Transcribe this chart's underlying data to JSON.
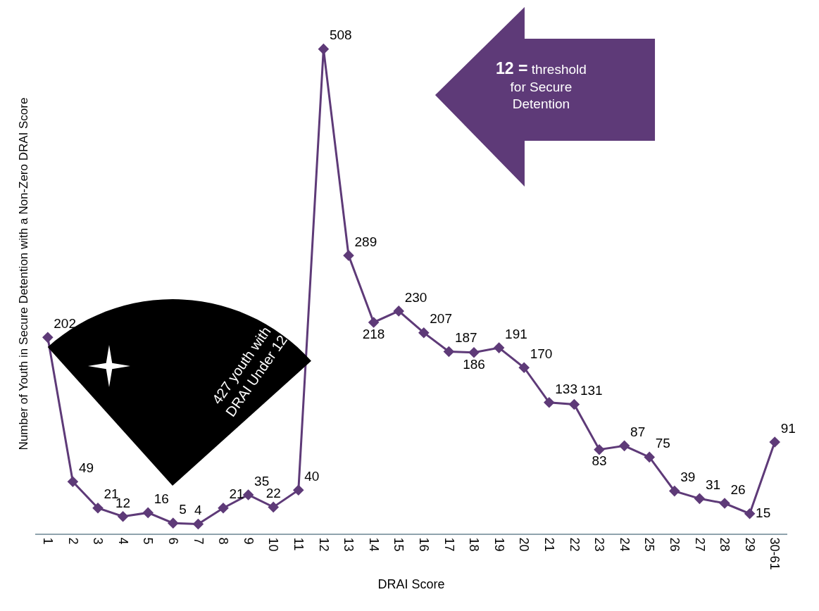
{
  "chart_data": {
    "type": "line",
    "xlabel": "DRAI Score",
    "ylabel": "Number of Youth in Secure Detention with a Non-Zero DRAI Score",
    "categories": [
      "1",
      "2",
      "3",
      "4",
      "5",
      "6",
      "7",
      "8",
      "9",
      "10",
      "11",
      "12",
      "13",
      "14",
      "15",
      "16",
      "17",
      "18",
      "19",
      "20",
      "21",
      "22",
      "23",
      "24",
      "25",
      "26",
      "27",
      "28",
      "29",
      "30-61"
    ],
    "series": [
      {
        "color": "#5e3a78",
        "values": [
          202,
          49,
          21,
          12,
          16,
          5,
          4,
          21,
          35,
          22,
          40,
          508,
          289,
          218,
          230,
          207,
          187,
          186,
          191,
          170,
          133,
          131,
          83,
          87,
          75,
          39,
          31,
          26,
          15,
          91
        ]
      }
    ],
    "data_labels": true,
    "marker": "diamond",
    "line_style": "solid",
    "tick_labels": "x",
    "annotations": [
      "12 = threshold for Secure Detention",
      "427 youth with DRAI Under 12"
    ]
  }
}
